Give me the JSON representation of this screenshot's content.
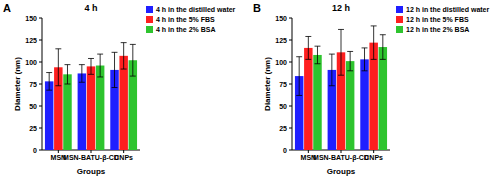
{
  "chart_data": [
    {
      "type": "bar",
      "panel_label": "A",
      "title": "4 h",
      "x_label": "Groups",
      "y_label": "Diameter (nm)",
      "categories": [
        "MSN",
        "MSN-BATU-β-CD",
        "CNPs"
      ],
      "ylim": [
        0,
        150
      ],
      "yticks": [
        0,
        25,
        50,
        75,
        100,
        125,
        150
      ],
      "legend": "right",
      "series": [
        {
          "name": "4 h in the distilled water",
          "color": "#1f1fff",
          "values": [
            78,
            87,
            91
          ],
          "errors": [
            10,
            10,
            20
          ]
        },
        {
          "name": "4 h in the 5% FBS",
          "color": "#ff1f1f",
          "values": [
            94,
            95,
            107
          ],
          "errors": [
            21,
            9,
            15
          ]
        },
        {
          "name": "4 h in the 2% BSA",
          "color": "#2ec42e",
          "values": [
            86,
            96,
            102
          ],
          "errors": [
            11,
            13,
            18
          ]
        }
      ]
    },
    {
      "type": "bar",
      "panel_label": "B",
      "title": "12 h",
      "x_label": "Groups",
      "y_label": "Diameter (nm)",
      "categories": [
        "MSN",
        "MSN-BATU-β-CD",
        "CNPs"
      ],
      "ylim": [
        0,
        150
      ],
      "yticks": [
        0,
        25,
        50,
        75,
        100,
        125,
        150
      ],
      "legend": "right",
      "series": [
        {
          "name": "12 h in the distilled water",
          "color": "#1f1fff",
          "values": [
            84,
            91,
            103
          ],
          "errors": [
            22,
            18,
            13
          ]
        },
        {
          "name": "12 h in the 5% FBS",
          "color": "#ff1f1f",
          "values": [
            116,
            111,
            122
          ],
          "errors": [
            13,
            26,
            19
          ]
        },
        {
          "name": "12 h in the 2% BSA",
          "color": "#2ec42e",
          "values": [
            108,
            101,
            117
          ],
          "errors": [
            10,
            11,
            14
          ]
        }
      ]
    }
  ]
}
